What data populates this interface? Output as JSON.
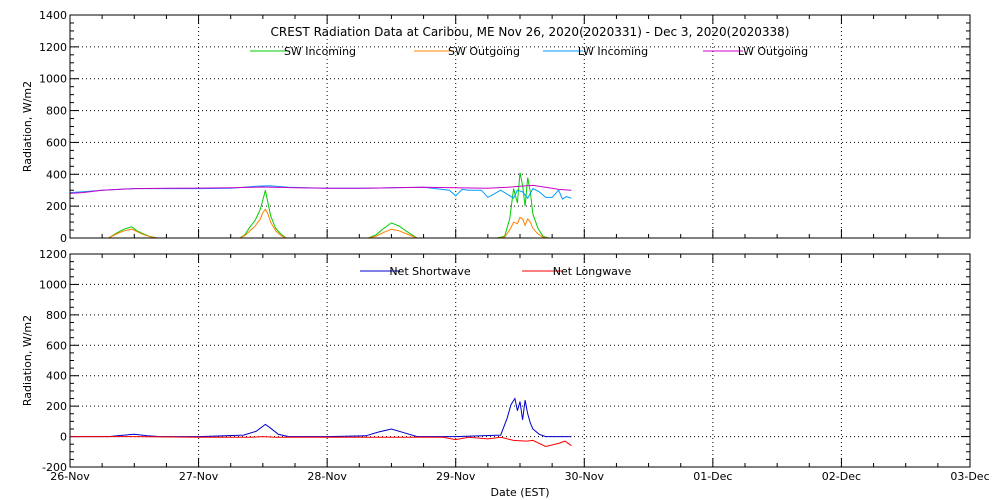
{
  "chart_data": [
    {
      "type": "line",
      "title": "CREST Radiation Data at Caribou, ME   Nov 26, 2020(2020331) - Dec  3, 2020(2020338)",
      "ylabel": "Radiation, W/m2",
      "xlabel": "",
      "ylim": [
        0,
        1400
      ],
      "yticks": [
        0,
        200,
        400,
        600,
        800,
        1000,
        1200,
        1400
      ],
      "xlim_days": [
        0,
        7
      ],
      "x_tick_labels": [
        "26-Nov",
        "27-Nov",
        "28-Nov",
        "29-Nov",
        "30-Nov",
        "01-Dec",
        "02-Dec",
        "03-Dec"
      ],
      "grid": true,
      "legend": "top-center",
      "series": [
        {
          "name": "SW Incoming",
          "color": "#00cc00",
          "x": [
            0,
            0.3,
            0.36,
            0.42,
            0.48,
            0.52,
            0.56,
            0.62,
            0.68,
            0.72,
            1.0,
            1.32,
            1.36,
            1.4,
            1.44,
            1.48,
            1.5,
            1.52,
            1.54,
            1.56,
            1.6,
            1.64,
            1.68,
            1.72,
            2.0,
            2.32,
            2.38,
            2.44,
            2.5,
            2.56,
            2.62,
            2.7,
            3.0,
            3.32,
            3.38,
            3.42,
            3.45,
            3.48,
            3.5,
            3.52,
            3.54,
            3.56,
            3.58,
            3.6,
            3.64,
            3.68,
            3.72,
            4.0
          ],
          "y": [
            0,
            0,
            30,
            55,
            70,
            45,
            30,
            10,
            0,
            0,
            0,
            0,
            20,
            70,
            110,
            180,
            240,
            300,
            220,
            140,
            60,
            25,
            0,
            0,
            0,
            0,
            20,
            60,
            95,
            75,
            40,
            0,
            0,
            0,
            10,
            120,
            310,
            220,
            410,
            330,
            200,
            380,
            290,
            150,
            60,
            10,
            0,
            0
          ]
        },
        {
          "name": "SW Outgoing",
          "color": "#ff8000",
          "x": [
            0,
            0.3,
            0.36,
            0.42,
            0.48,
            0.52,
            0.56,
            0.62,
            0.68,
            0.72,
            1.0,
            1.32,
            1.36,
            1.4,
            1.44,
            1.48,
            1.5,
            1.52,
            1.54,
            1.56,
            1.6,
            1.64,
            1.68,
            1.72,
            2.0,
            2.32,
            2.38,
            2.44,
            2.5,
            2.56,
            2.62,
            2.7,
            3.0,
            3.32,
            3.38,
            3.42,
            3.45,
            3.48,
            3.5,
            3.52,
            3.54,
            3.56,
            3.58,
            3.6,
            3.64,
            3.68,
            3.72,
            4.0
          ],
          "y": [
            0,
            0,
            25,
            45,
            55,
            40,
            25,
            8,
            0,
            0,
            0,
            0,
            15,
            45,
            75,
            120,
            160,
            180,
            150,
            100,
            45,
            15,
            0,
            0,
            0,
            0,
            12,
            35,
            55,
            45,
            25,
            0,
            0,
            0,
            5,
            50,
            100,
            90,
            130,
            120,
            80,
            120,
            100,
            60,
            25,
            5,
            0,
            0
          ]
        },
        {
          "name": "LW Incoming",
          "color": "#0099ff",
          "x": [
            0,
            0.1,
            0.25,
            0.5,
            0.75,
            1.0,
            1.25,
            1.45,
            1.55,
            1.7,
            2.0,
            2.25,
            2.5,
            2.75,
            2.95,
            3.0,
            3.05,
            3.1,
            3.2,
            3.25,
            3.35,
            3.45,
            3.48,
            3.52,
            3.56,
            3.6,
            3.65,
            3.7,
            3.75,
            3.8,
            3.83,
            3.86,
            3.9
          ],
          "y": [
            285,
            290,
            300,
            310,
            310,
            310,
            312,
            325,
            328,
            318,
            312,
            312,
            315,
            318,
            300,
            265,
            305,
            300,
            300,
            255,
            300,
            250,
            300,
            290,
            250,
            310,
            290,
            255,
            255,
            300,
            245,
            260,
            250
          ]
        },
        {
          "name": "LW Outgoing",
          "color": "#cc00cc",
          "x": [
            0,
            0.1,
            0.25,
            0.5,
            0.75,
            1.0,
            1.25,
            1.5,
            1.75,
            2.0,
            2.25,
            2.5,
            2.75,
            3.0,
            3.25,
            3.4,
            3.5,
            3.6,
            3.7,
            3.8,
            3.9
          ],
          "y": [
            280,
            285,
            300,
            310,
            312,
            313,
            315,
            320,
            315,
            312,
            312,
            315,
            318,
            315,
            312,
            318,
            325,
            330,
            318,
            305,
            300
          ]
        }
      ]
    },
    {
      "type": "line",
      "title": "",
      "xlabel": "Date (EST)",
      "ylabel": "Radiation, W/m2",
      "ylim": [
        -200,
        1200
      ],
      "yticks": [
        -200,
        0,
        200,
        400,
        600,
        800,
        1000,
        1200
      ],
      "xlim_days": [
        0,
        7
      ],
      "x_tick_labels": [
        "26-Nov",
        "27-Nov",
        "28-Nov",
        "29-Nov",
        "30-Nov",
        "01-Dec",
        "02-Dec",
        "03-Dec"
      ],
      "grid": true,
      "legend": "top-center",
      "series": [
        {
          "name": "Net Shortwave",
          "color": "#0000cc",
          "x": [
            0,
            0.3,
            0.4,
            0.5,
            0.6,
            0.7,
            1.0,
            1.35,
            1.45,
            1.52,
            1.56,
            1.62,
            1.7,
            2.0,
            2.3,
            2.4,
            2.5,
            2.6,
            2.7,
            3.0,
            3.35,
            3.4,
            3.43,
            3.46,
            3.48,
            3.5,
            3.52,
            3.54,
            3.56,
            3.58,
            3.6,
            3.65,
            3.7,
            3.8,
            3.9
          ],
          "y": [
            0,
            0,
            8,
            15,
            5,
            0,
            0,
            10,
            35,
            80,
            55,
            15,
            0,
            0,
            5,
            30,
            50,
            25,
            0,
            0,
            10,
            120,
            210,
            250,
            170,
            230,
            110,
            240,
            150,
            90,
            50,
            15,
            0,
            0,
            0
          ]
        },
        {
          "name": "Net Longwave",
          "color": "#ff0000",
          "x": [
            0,
            0.5,
            1.0,
            1.4,
            1.5,
            1.6,
            2.0,
            2.5,
            2.9,
            3.0,
            3.1,
            3.25,
            3.35,
            3.45,
            3.55,
            3.6,
            3.7,
            3.8,
            3.85,
            3.9
          ],
          "y": [
            0,
            0,
            -5,
            -5,
            0,
            -5,
            -5,
            -5,
            -5,
            -20,
            -5,
            -15,
            -5,
            -25,
            -30,
            -25,
            -65,
            -45,
            -30,
            -60
          ]
        }
      ]
    }
  ]
}
